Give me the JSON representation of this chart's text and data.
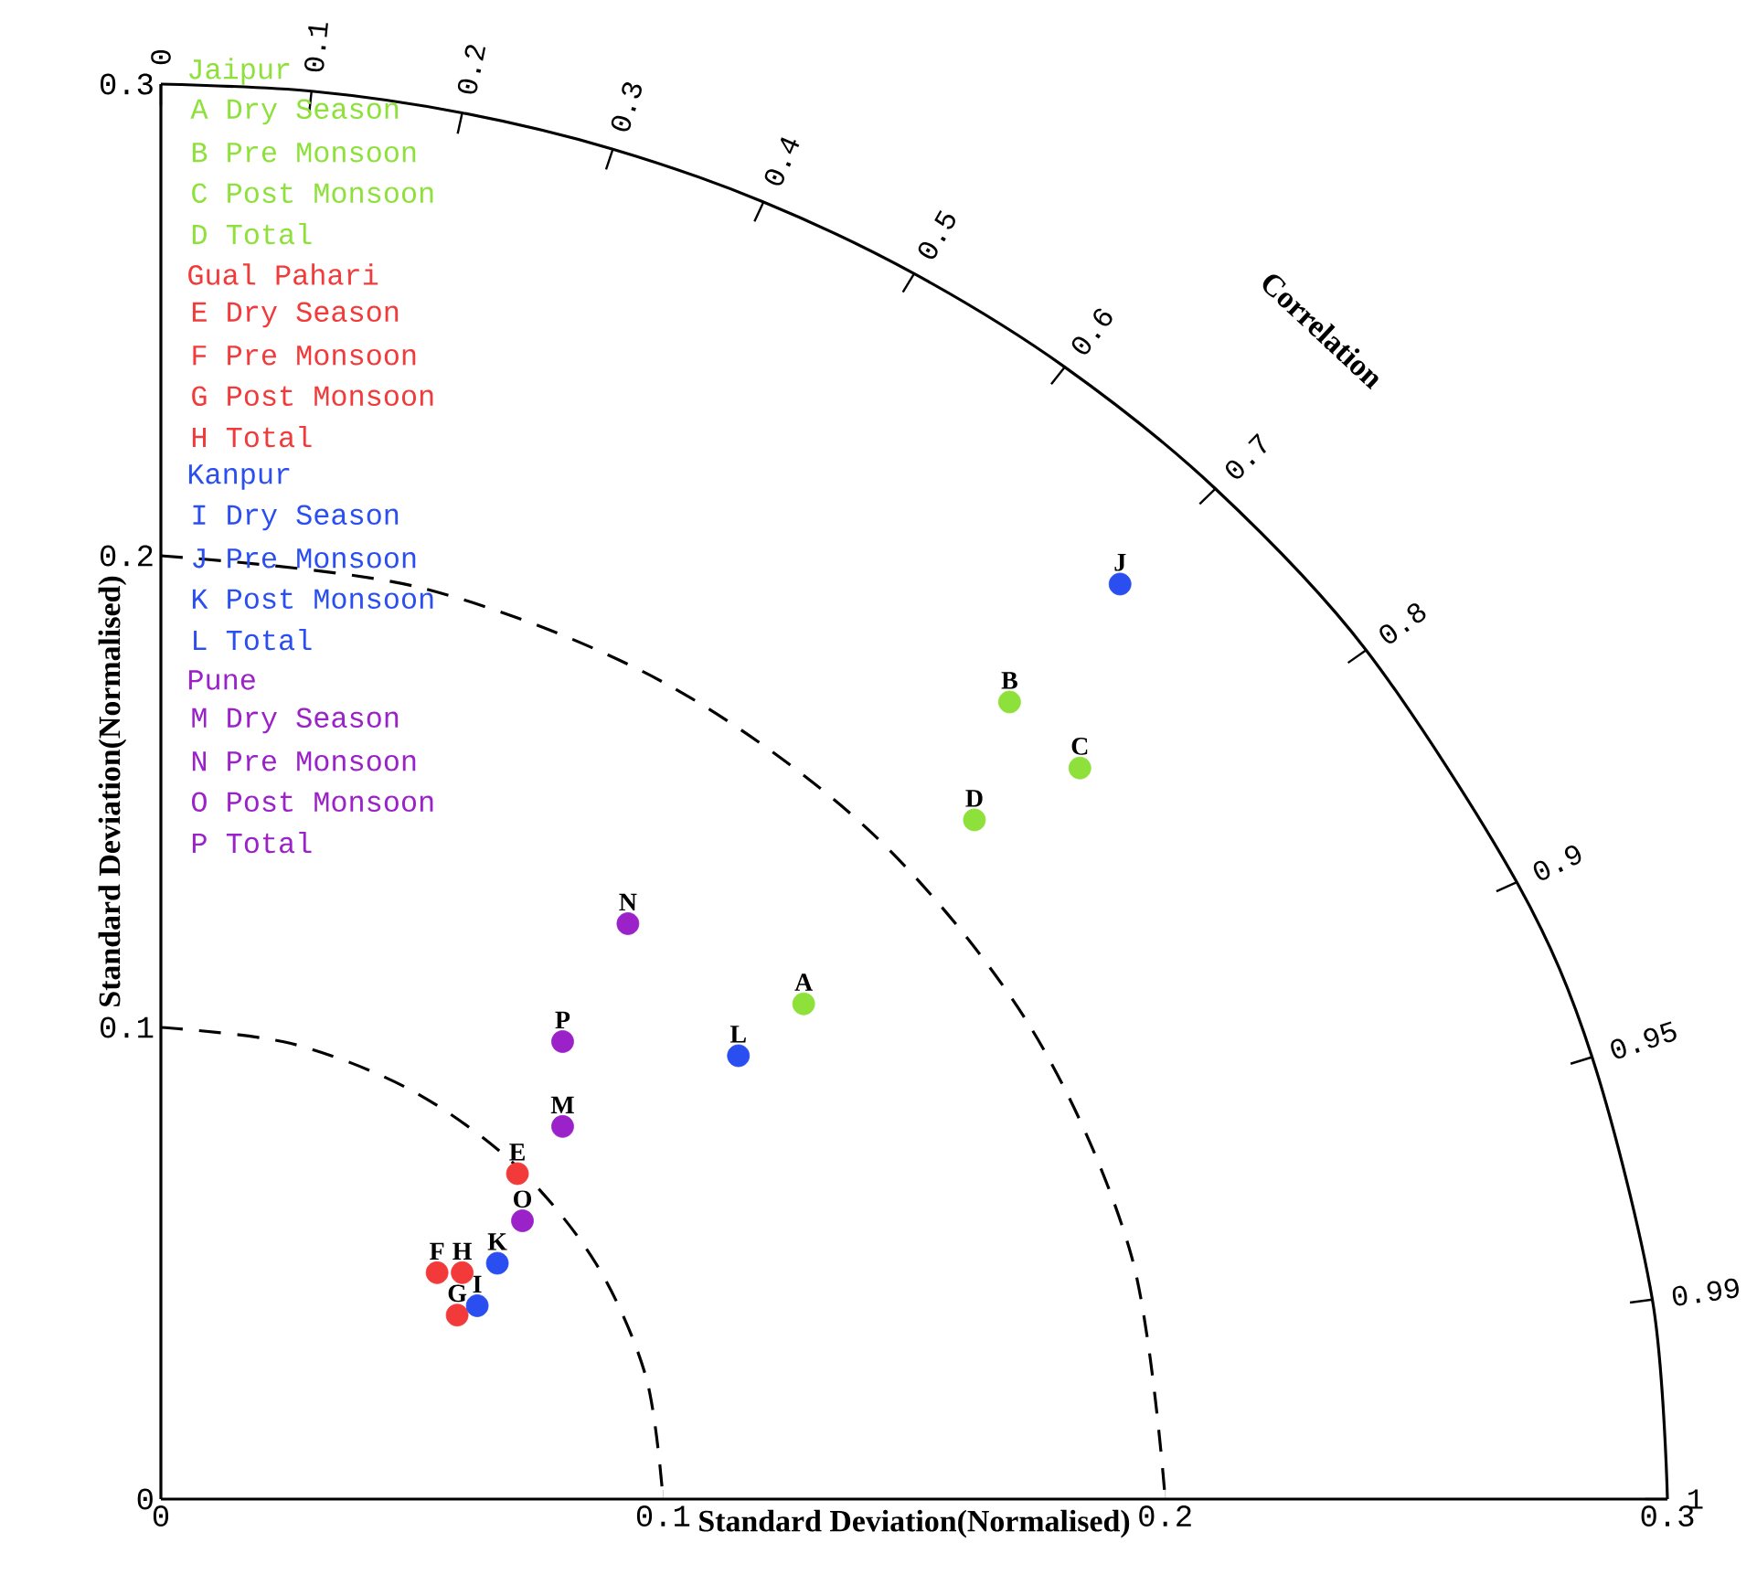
{
  "chart_data": {
    "type": "scatter",
    "xlabel": "Standard Deviation(Normalised)",
    "ylabel": "Standard Deviation(Normalised)",
    "y2label": "Correlation",
    "xlim": [
      0,
      0.3
    ],
    "ylim": [
      0,
      0.3
    ],
    "xticks": [
      0,
      0.1,
      0.2,
      0.3
    ],
    "yticks": [
      0,
      0.1,
      0.2,
      0.3
    ],
    "legend": "top left",
    "series": [
      {
        "type": "line",
        "color": "#000000",
        "line_style": "solid",
        "marker": "none",
        "x": [
          0,
          0.03,
          0.06,
          0.09,
          0.12,
          0.15,
          0.18,
          0.21,
          0.24,
          0.27,
          0.285,
          0.297,
          0.3
        ],
        "values": [
          0.3,
          0.2985,
          0.2939,
          0.2862,
          0.275,
          0.2598,
          0.24,
          0.2142,
          0.18,
          0.1308,
          0.0937,
          0.0423,
          0
        ]
      },
      {
        "type": "line",
        "color": "#000000",
        "line_style": "dashed",
        "marker": "none",
        "x": [
          0,
          0.0259,
          0.05,
          0.0707,
          0.0866,
          0.0966,
          0.1
        ],
        "values": [
          0.1,
          0.0966,
          0.0866,
          0.0707,
          0.05,
          0.0259,
          0
        ]
      },
      {
        "type": "line",
        "color": "#000000",
        "line_style": "dashed",
        "marker": "none",
        "x": [
          0,
          0.0518,
          0.1,
          0.1414,
          0.1732,
          0.1932,
          0.2
        ],
        "values": [
          0.2,
          0.1932,
          0.1732,
          0.1414,
          0.1,
          0.0518,
          0
        ]
      },
      {
        "name": "Jaipur",
        "color": "#8ee03a",
        "marker": "circle",
        "x": [
          0.128,
          0.169,
          0.183,
          0.162
        ],
        "values": [
          0.105,
          0.169,
          0.155,
          0.144
        ]
      },
      {
        "name": "Gual Pahari",
        "color": "#f23a3a",
        "marker": "circle",
        "x": [
          0.071,
          0.055,
          0.059,
          0.06
        ],
        "values": [
          0.069,
          0.048,
          0.039,
          0.048
        ]
      },
      {
        "name": "Kanpur",
        "color": "#2a4ef0",
        "marker": "circle",
        "x": [
          0.063,
          0.191,
          0.067,
          0.115
        ],
        "values": [
          0.041,
          0.194,
          0.05,
          0.094
        ]
      },
      {
        "name": "Pune",
        "color": "#9a22c8",
        "marker": "circle",
        "x": [
          0.08,
          0.093,
          0.072,
          0.08
        ],
        "values": [
          0.079,
          0.122,
          0.059,
          0.097
        ]
      }
    ],
    "annotations": [
      "A Dry Season",
      "B Pre Monsoon",
      "C Post Monsoon",
      "D Total",
      "E Dry Season",
      "F Pre Monsoon",
      "G Post Monsoon",
      "H Total",
      "I Dry Season",
      "J Pre Monsoon",
      "K Post Monsoon",
      "L Total",
      "M Dry Season",
      "N Pre Monsoon",
      "O Post Monsoon",
      "P Total",
      {
        "text": "A",
        "x": 0.128,
        "y": 0.105
      },
      {
        "text": "B",
        "x": 0.169,
        "y": 0.169
      },
      {
        "text": "C",
        "x": 0.183,
        "y": 0.155
      },
      {
        "text": "D",
        "x": 0.162,
        "y": 0.144
      },
      {
        "text": "E",
        "x": 0.071,
        "y": 0.069
      },
      {
        "text": "F",
        "x": 0.055,
        "y": 0.048
      },
      {
        "text": "G",
        "x": 0.059,
        "y": 0.039
      },
      {
        "text": "H",
        "x": 0.06,
        "y": 0.048
      },
      {
        "text": "I",
        "x": 0.063,
        "y": 0.041
      },
      {
        "text": "J",
        "x": 0.191,
        "y": 0.194
      },
      {
        "text": "K",
        "x": 0.067,
        "y": 0.05
      },
      {
        "text": "L",
        "x": 0.115,
        "y": 0.094
      },
      {
        "text": "M",
        "x": 0.08,
        "y": 0.079
      },
      {
        "text": "N",
        "x": 0.093,
        "y": 0.122
      },
      {
        "text": "O",
        "x": 0.072,
        "y": 0.059
      },
      {
        "text": "P",
        "x": 0.08,
        "y": 0.097
      },
      {
        "text": "0",
        "x": 0,
        "y": 0.3
      },
      {
        "text": "0.1",
        "x": 0.03,
        "y": 0.2985
      },
      {
        "text": "0.2",
        "x": 0.06,
        "y": 0.2939
      },
      {
        "text": "0.3",
        "x": 0.09,
        "y": 0.2862
      },
      {
        "text": "0.4",
        "x": 0.12,
        "y": 0.275
      },
      {
        "text": "0.5",
        "x": 0.15,
        "y": 0.2598
      },
      {
        "text": "0.6",
        "x": 0.18,
        "y": 0.24
      },
      {
        "text": "0.7",
        "x": 0.21,
        "y": 0.2142
      },
      {
        "text": "0.8",
        "x": 0.24,
        "y": 0.18
      },
      {
        "text": "0.9",
        "x": 0.27,
        "y": 0.1308
      },
      {
        "text": "0.95",
        "x": 0.285,
        "y": 0.0937
      },
      {
        "text": "0.99",
        "x": 0.297,
        "y": 0.0423
      },
      {
        "text": "1",
        "x": 0.3,
        "y": 0
      }
    ]
  }
}
